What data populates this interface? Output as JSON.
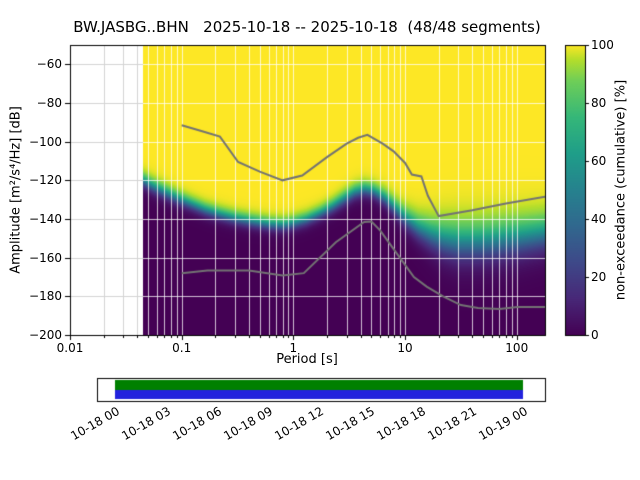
{
  "chart_data": {
    "type": "heatmap",
    "title": "BW.JASBG..BHN   2025-10-18 -- 2025-10-18  (48/48 segments)",
    "station": "BW.JASBG..BHN",
    "date_range": "2025-10-18 -- 2025-10-18",
    "segments_used": 48,
    "segments_total": 48,
    "xlabel": "Period [s]",
    "ylabel": "Amplitude [m²/s⁴/Hz] [dB]",
    "xscale": "log",
    "grid": true,
    "xlim": [
      0.01,
      179
    ],
    "ylim": [
      -200,
      -50
    ],
    "xticks": [
      0.01,
      0.1,
      1,
      10,
      100
    ],
    "xtick_labels": [
      "0.01",
      "0.1",
      "1",
      "10",
      "100"
    ],
    "yticks": [
      -60,
      -80,
      -100,
      -120,
      -140,
      -160,
      -180,
      -200
    ],
    "ytick_labels": [
      "−60",
      "−80",
      "−100",
      "−120",
      "−140",
      "−160",
      "−180",
      "−200"
    ],
    "colorbar": {
      "label": "non-exceedance (cumulative) [%]",
      "ticks": [
        0,
        20,
        40,
        60,
        80,
        100
      ],
      "colormap": "viridis",
      "stops": [
        [
          0.0,
          "#440154"
        ],
        [
          0.125,
          "#482878"
        ],
        [
          0.25,
          "#3e4989"
        ],
        [
          0.375,
          "#31688e"
        ],
        [
          0.5,
          "#26828e"
        ],
        [
          0.625,
          "#1f9e89"
        ],
        [
          0.75,
          "#35b779"
        ],
        [
          0.875,
          "#6ece58"
        ],
        [
          0.95,
          "#b5de2b"
        ],
        [
          1.0,
          "#fde725"
        ]
      ]
    },
    "distribution": {
      "comment": "cumulative non-exceedance boundary: median dB level and transition spread per period",
      "min_period": 0.045,
      "periods": [
        0.045,
        0.055,
        0.07,
        0.09,
        0.12,
        0.16,
        0.22,
        0.3,
        0.42,
        0.6,
        0.8,
        1.0,
        1.3,
        1.7,
        2.2,
        2.8,
        3.5,
        4.3,
        5.2,
        6.5,
        8.0,
        10,
        13,
        17,
        22,
        30,
        45,
        70,
        110,
        179
      ],
      "median_db": [
        -120,
        -123,
        -126,
        -129,
        -132,
        -135,
        -137.5,
        -139.5,
        -141,
        -142.5,
        -143,
        -142,
        -140,
        -137,
        -133.5,
        -129.5,
        -126,
        -124.5,
        -125.5,
        -129,
        -134,
        -139.5,
        -144.5,
        -148,
        -150.5,
        -152,
        -152,
        -151,
        -149.5,
        -147.5
      ],
      "spread_db": [
        2,
        2,
        2,
        1.9,
        1.8,
        1.8,
        1.8,
        1.8,
        1.8,
        1.8,
        1.8,
        1.8,
        1.8,
        1.8,
        1.9,
        2,
        2,
        2,
        2,
        2.2,
        2.4,
        2.8,
        3.4,
        4.2,
        5,
        5.5,
        5.5,
        5.5,
        5.3,
        5
      ]
    },
    "noise_models": {
      "color": "#737373",
      "high": {
        "periods": [
          0.1,
          0.15,
          0.22,
          0.32,
          0.5,
          0.8,
          1.2,
          2.0,
          3.0,
          3.8,
          4.6,
          6.3,
          7.9,
          10.0,
          11.5,
          14.0,
          16.0,
          20.0,
          40.0,
          80.0,
          179.0
        ],
        "db": [
          -91.5,
          -94.5,
          -97.4,
          -110.5,
          -115.5,
          -120.0,
          -117.5,
          -108.0,
          -101.0,
          -98.0,
          -96.5,
          -101.0,
          -105.0,
          -111.0,
          -117.0,
          -118.0,
          -128.0,
          -138.5,
          -135.5,
          -132.0,
          -128.5
        ]
      },
      "low": {
        "periods": [
          0.1,
          0.17,
          0.4,
          0.8,
          1.24,
          2.4,
          4.3,
          5.0,
          6.0,
          10.0,
          12.0,
          15.6,
          21.9,
          31.6,
          45.0,
          70.0,
          101.0,
          154.0,
          179.0
        ],
        "db": [
          -168.0,
          -166.7,
          -166.7,
          -169.2,
          -168.0,
          -152.0,
          -141.5,
          -141.3,
          -146.0,
          -163.7,
          -170.0,
          -175.0,
          -180.0,
          -184.5,
          -186.0,
          -186.5,
          -185.5,
          -185.5,
          -185.5
        ]
      }
    },
    "timeline": {
      "labels": [
        "10-18 00",
        "10-18 03",
        "10-18 06",
        "10-18 09",
        "10-18 12",
        "10-18 15",
        "10-18 18",
        "10-18 21",
        "10-19 00"
      ],
      "coverage_color": "#008000",
      "secondary_color": "#2222dd"
    }
  }
}
